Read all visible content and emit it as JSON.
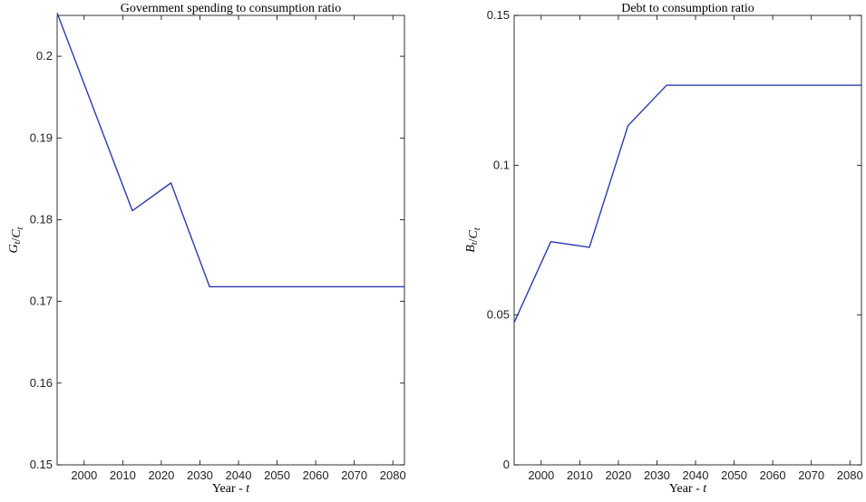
{
  "chart_data": [
    {
      "type": "line",
      "title": "Government spending to consumption ratio",
      "xlabel": "Year - t",
      "ylabel": "G_t/C_t",
      "xlim": [
        1993,
        2083
      ],
      "ylim": [
        0.15,
        0.205
      ],
      "xticks": [
        2000,
        2010,
        2020,
        2030,
        2040,
        2050,
        2060,
        2070,
        2080
      ],
      "yticks": [
        0.15,
        0.16,
        0.17,
        0.18,
        0.19,
        0.2
      ],
      "ytick_labels": [
        "0.15",
        "0.16",
        "0.17",
        "0.18",
        "0.19",
        "0.2"
      ],
      "grid": false,
      "color": "#2b3bb0",
      "series": [
        {
          "x": [
            1993,
            2012.5,
            2022.5,
            2032.5,
            2083
          ],
          "y": [
            0.2053,
            0.1811,
            0.1845,
            0.1718,
            0.1718
          ]
        }
      ]
    },
    {
      "type": "line",
      "title": "Debt to consumption ratio",
      "xlabel": "Year - t",
      "ylabel": "B_t/C_t",
      "xlim": [
        1993,
        2083
      ],
      "ylim": [
        0,
        0.15
      ],
      "xticks": [
        2000,
        2010,
        2020,
        2030,
        2040,
        2050,
        2060,
        2070,
        2080
      ],
      "yticks": [
        0,
        0.05,
        0.1,
        0.15
      ],
      "ytick_labels": [
        "0",
        "0.05",
        "0.1",
        "0.15"
      ],
      "grid": false,
      "color": "#2b3bb0",
      "series": [
        {
          "x": [
            1993,
            2002.5,
            2012.5,
            2022.5,
            2032.5,
            2083
          ],
          "y": [
            0.0475,
            0.0745,
            0.0726,
            0.1132,
            0.1267,
            0.1267
          ]
        }
      ]
    }
  ]
}
